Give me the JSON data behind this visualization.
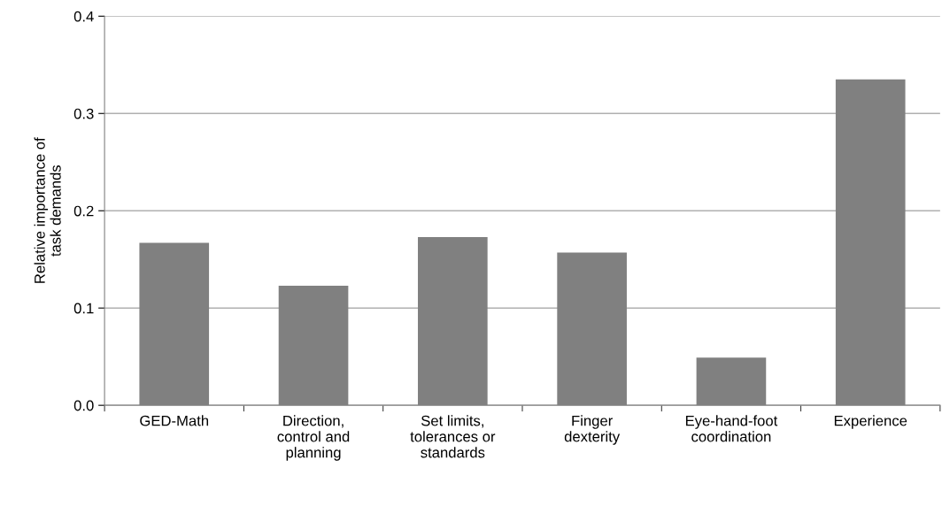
{
  "chart_data": {
    "type": "bar",
    "ylabel": "Relative importance of\ntask demands",
    "categories": [
      "GED-Math",
      "Direction,\ncontrol and\nplanning",
      "Set limits,\ntolerances or\nstandards",
      "Finger\ndexterity",
      "Eye-hand-foot\ncoordination",
      "Experience"
    ],
    "values": [
      0.167,
      0.123,
      0.173,
      0.157,
      0.049,
      0.335
    ],
    "color": "#808080",
    "ylim": [
      0,
      0.4
    ],
    "yticks": [
      {
        "value": 0,
        "label": "0.0"
      },
      {
        "value": 0.1,
        "label": "0.1"
      },
      {
        "value": 0.2,
        "label": "0.2"
      },
      {
        "value": 0.3,
        "label": "0.3"
      },
      {
        "value": 0.4,
        "label": "0.4"
      }
    ],
    "grid": "y",
    "legend": false
  }
}
